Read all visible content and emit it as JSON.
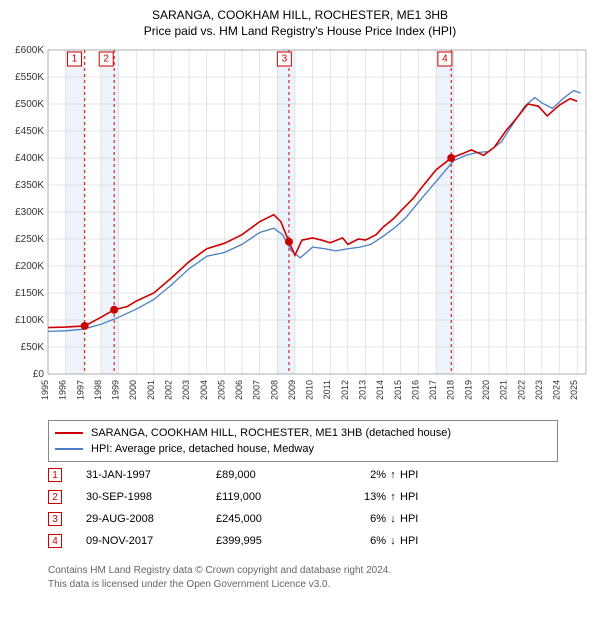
{
  "title1": "SARANGA, COOKHAM HILL, ROCHESTER, ME1 3HB",
  "title2": "Price paid vs. HM Land Registry's House Price Index (HPI)",
  "chart": {
    "type": "line",
    "background_color": "#ffffff",
    "grid_color": "#cccccc",
    "ylim": [
      0,
      600000
    ],
    "ytick_step": 50000,
    "y_labels": [
      "£0",
      "£50K",
      "£100K",
      "£150K",
      "£200K",
      "£250K",
      "£300K",
      "£350K",
      "£400K",
      "£450K",
      "£500K",
      "£550K",
      "£600K"
    ],
    "xlim": [
      1995,
      2025.5
    ],
    "x_labels": [
      "1995",
      "1996",
      "1997",
      "1998",
      "1999",
      "2000",
      "2001",
      "2002",
      "2003",
      "2004",
      "2005",
      "2006",
      "2007",
      "2008",
      "2009",
      "2010",
      "2011",
      "2012",
      "2013",
      "2014",
      "2015",
      "2016",
      "2017",
      "2018",
      "2019",
      "2020",
      "2021",
      "2022",
      "2023",
      "2024",
      "2025"
    ],
    "shade_bands": [
      {
        "from": 1996,
        "to": 1997,
        "color": "#edf2fb"
      },
      {
        "from": 1998,
        "to": 1999,
        "color": "#edf2fb"
      },
      {
        "from": 2008,
        "to": 2009,
        "color": "#edf2fb"
      },
      {
        "from": 2017,
        "to": 2018,
        "color": "#edf2fb"
      }
    ],
    "vlines": [
      {
        "x": 1997.08,
        "color": "#cc0000",
        "dash": "3,3"
      },
      {
        "x": 1998.75,
        "color": "#cc0000",
        "dash": "3,3"
      },
      {
        "x": 2008.66,
        "color": "#cc0000",
        "dash": "3,3"
      },
      {
        "x": 2017.86,
        "color": "#cc0000",
        "dash": "3,3"
      }
    ],
    "marker_boxes": [
      {
        "x": 1996.5,
        "label": "1"
      },
      {
        "x": 1998.3,
        "label": "2"
      },
      {
        "x": 2008.4,
        "label": "3"
      },
      {
        "x": 2017.5,
        "label": "4"
      }
    ],
    "series_red": {
      "color": "#cc0000",
      "width": 1.6,
      "points": [
        [
          1995,
          86000
        ],
        [
          1996,
          87000
        ],
        [
          1997.08,
          89000
        ],
        [
          1998,
          105000
        ],
        [
          1998.75,
          119000
        ],
        [
          1999.5,
          125000
        ],
        [
          2000,
          135000
        ],
        [
          2001,
          150000
        ],
        [
          2002,
          178000
        ],
        [
          2003,
          208000
        ],
        [
          2004,
          232000
        ],
        [
          2005,
          242000
        ],
        [
          2006,
          258000
        ],
        [
          2007,
          282000
        ],
        [
          2007.8,
          295000
        ],
        [
          2008.2,
          282000
        ],
        [
          2008.66,
          245000
        ],
        [
          2009,
          220000
        ],
        [
          2009.4,
          248000
        ],
        [
          2010,
          252000
        ],
        [
          2010.5,
          248000
        ],
        [
          2011,
          243000
        ],
        [
          2011.7,
          252000
        ],
        [
          2012,
          240000
        ],
        [
          2012.6,
          250000
        ],
        [
          2013,
          248000
        ],
        [
          2013.6,
          258000
        ],
        [
          2014,
          272000
        ],
        [
          2014.6,
          288000
        ],
        [
          2015,
          302000
        ],
        [
          2015.7,
          325000
        ],
        [
          2016.3,
          350000
        ],
        [
          2017,
          378000
        ],
        [
          2017.86,
          399995
        ],
        [
          2018.5,
          408000
        ],
        [
          2019,
          415000
        ],
        [
          2019.7,
          405000
        ],
        [
          2020.3,
          420000
        ],
        [
          2021,
          452000
        ],
        [
          2021.6,
          475000
        ],
        [
          2022.2,
          500000
        ],
        [
          2022.8,
          496000
        ],
        [
          2023.3,
          478000
        ],
        [
          2024,
          498000
        ],
        [
          2024.6,
          510000
        ],
        [
          2025,
          505000
        ]
      ],
      "dots": [
        {
          "x": 1997.08,
          "y": 89000
        },
        {
          "x": 1998.75,
          "y": 119000
        },
        {
          "x": 2008.66,
          "y": 245000
        },
        {
          "x": 2017.86,
          "y": 399995
        }
      ]
    },
    "series_blue": {
      "color": "#4a7fc4",
      "width": 1.3,
      "points": [
        [
          1995,
          79000
        ],
        [
          1996,
          80000
        ],
        [
          1997,
          83000
        ],
        [
          1998,
          92000
        ],
        [
          1999,
          105000
        ],
        [
          2000,
          120000
        ],
        [
          2001,
          138000
        ],
        [
          2002,
          165000
        ],
        [
          2003,
          195000
        ],
        [
          2004,
          218000
        ],
        [
          2005,
          225000
        ],
        [
          2006,
          240000
        ],
        [
          2007,
          262000
        ],
        [
          2007.8,
          270000
        ],
        [
          2008.3,
          258000
        ],
        [
          2008.8,
          228000
        ],
        [
          2009.3,
          215000
        ],
        [
          2010,
          235000
        ],
        [
          2010.7,
          232000
        ],
        [
          2011.3,
          228000
        ],
        [
          2012,
          232000
        ],
        [
          2012.7,
          235000
        ],
        [
          2013.3,
          240000
        ],
        [
          2014,
          255000
        ],
        [
          2014.7,
          272000
        ],
        [
          2015.3,
          290000
        ],
        [
          2016,
          318000
        ],
        [
          2016.7,
          345000
        ],
        [
          2017.3,
          368000
        ],
        [
          2018,
          395000
        ],
        [
          2018.7,
          405000
        ],
        [
          2019.3,
          410000
        ],
        [
          2020,
          412000
        ],
        [
          2020.7,
          430000
        ],
        [
          2021.3,
          460000
        ],
        [
          2022,
          495000
        ],
        [
          2022.6,
          512000
        ],
        [
          2023,
          502000
        ],
        [
          2023.6,
          492000
        ],
        [
          2024.2,
          510000
        ],
        [
          2024.8,
          525000
        ],
        [
          2025.2,
          520000
        ]
      ]
    }
  },
  "legend": {
    "items": [
      {
        "color": "#cc0000",
        "label": "SARANGA, COOKHAM HILL, ROCHESTER, ME1 3HB (detached house)",
        "width": 2
      },
      {
        "color": "#4a7fc4",
        "label": "HPI: Average price, detached house, Medway",
        "width": 1.5
      }
    ]
  },
  "transactions": [
    {
      "n": "1",
      "date": "31-JAN-1997",
      "price": "£89,000",
      "pct": "2%",
      "arrow": "↑",
      "hpi": "HPI"
    },
    {
      "n": "2",
      "date": "30-SEP-1998",
      "price": "£119,000",
      "pct": "13%",
      "arrow": "↑",
      "hpi": "HPI"
    },
    {
      "n": "3",
      "date": "29-AUG-2008",
      "price": "£245,000",
      "pct": "6%",
      "arrow": "↓",
      "hpi": "HPI"
    },
    {
      "n": "4",
      "date": "09-NOV-2017",
      "price": "£399,995",
      "pct": "6%",
      "arrow": "↓",
      "hpi": "HPI"
    }
  ],
  "footer1": "Contains HM Land Registry data © Crown copyright and database right 2024.",
  "footer2": "This data is licensed under the Open Government Licence v3.0."
}
